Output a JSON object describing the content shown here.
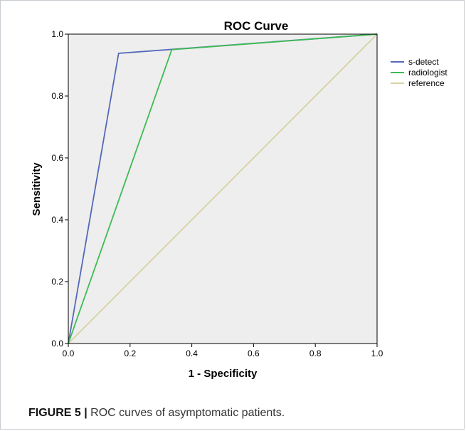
{
  "figure": {
    "label": "FIGURE 5 |",
    "caption": "ROC curves of asymptomatic patients."
  },
  "chart_data": {
    "type": "line",
    "title": "ROC Curve",
    "xlabel": "1 - Specificity",
    "ylabel": "Sensitivity",
    "xlim": [
      0.0,
      1.0
    ],
    "ylim": [
      0.0,
      1.0
    ],
    "x_ticks": [
      "0.0",
      "0.2",
      "0.4",
      "0.6",
      "0.8",
      "1.0"
    ],
    "y_ticks": [
      "0.0",
      "0.2",
      "0.4",
      "0.6",
      "0.8",
      "1.0"
    ],
    "grid": false,
    "legend_position": "right",
    "plot_background": "#eeeeee",
    "series": [
      {
        "name": "s-detect",
        "color": "#5468b8",
        "x": [
          0.0,
          0.163,
          1.0
        ],
        "y": [
          0.0,
          0.938,
          1.0
        ]
      },
      {
        "name": "radiologist",
        "color": "#3dbb54",
        "x": [
          0.0,
          0.335,
          1.0
        ],
        "y": [
          0.0,
          0.95,
          1.0
        ]
      },
      {
        "name": "reference",
        "color": "#d7d2a0",
        "x": [
          0.0,
          1.0
        ],
        "y": [
          0.0,
          1.0
        ]
      }
    ]
  }
}
